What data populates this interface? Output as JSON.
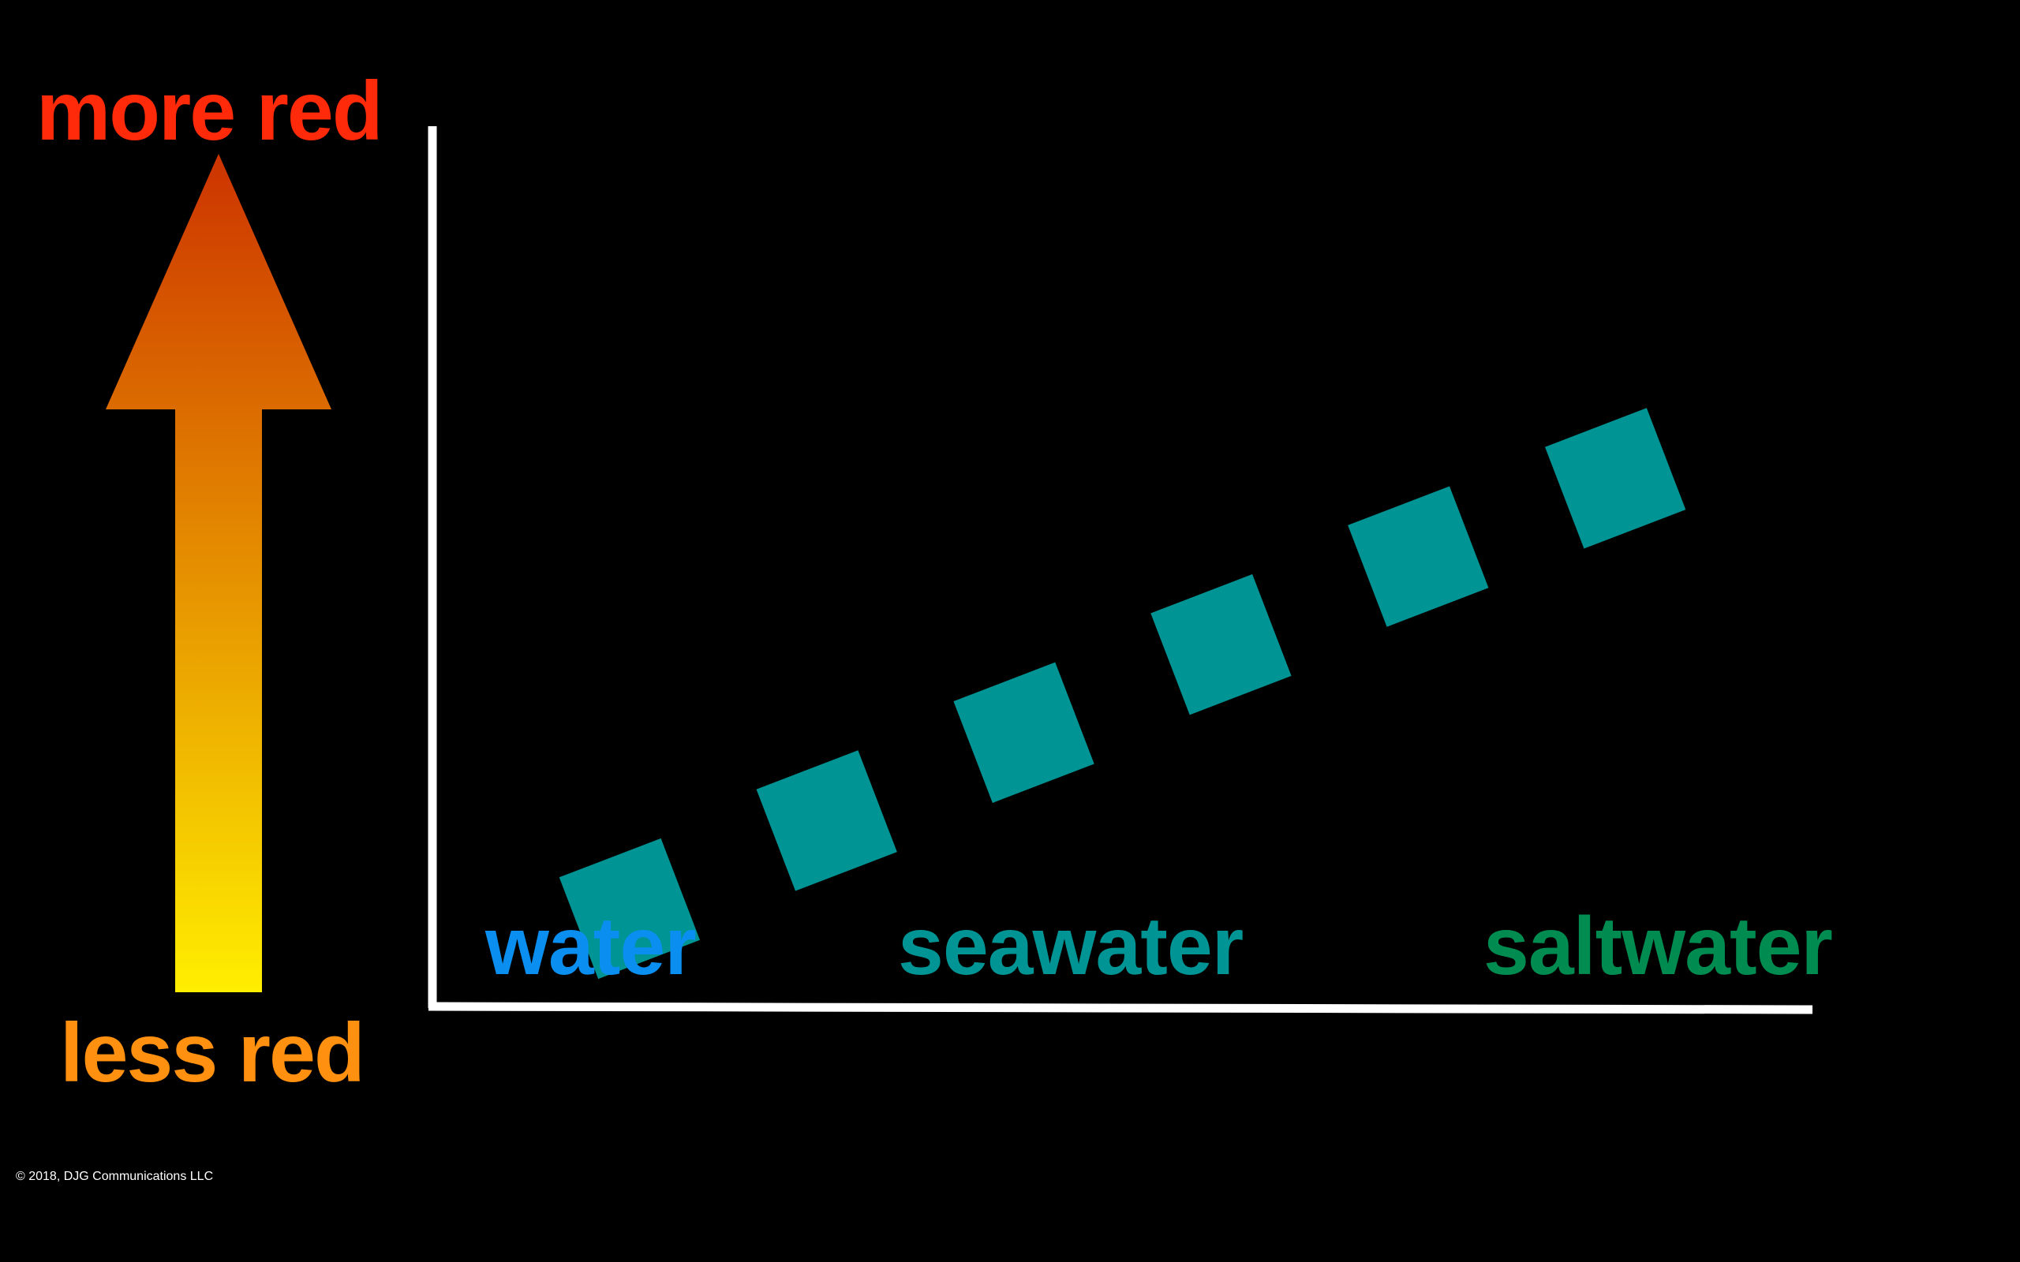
{
  "labels": {
    "top": "more red",
    "bottom": "less red",
    "copyright": "© 2018, DJG Communications LLC"
  },
  "colors": {
    "top_label": "#ff2a0a",
    "bottom_label": "#ff9010",
    "arrow_top": "#cc3300",
    "arrow_bottom": "#ffee00",
    "axis": "#ffffff",
    "marker": "#009494",
    "water": "#0a8ff0",
    "seawater": "#009494",
    "saltwater": "#008c50"
  },
  "chart_data": {
    "type": "scatter",
    "marker": "square",
    "categories": [
      "water",
      "seawater",
      "saltwater"
    ],
    "x": [
      1,
      2,
      3,
      4,
      5,
      6
    ],
    "values": [
      1.0,
      1.9,
      2.8,
      3.7,
      4.6,
      5.4
    ],
    "xlim": [
      0,
      7
    ],
    "ylim": [
      0,
      9
    ],
    "title": "",
    "xlabel": "",
    "ylabel": ""
  }
}
